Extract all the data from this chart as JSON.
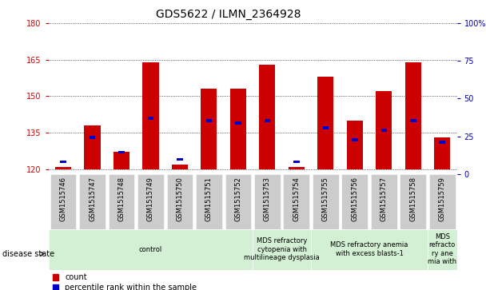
{
  "title": "GDS5622 / ILMN_2364928",
  "samples": [
    "GSM1515746",
    "GSM1515747",
    "GSM1515748",
    "GSM1515749",
    "GSM1515750",
    "GSM1515751",
    "GSM1515752",
    "GSM1515753",
    "GSM1515754",
    "GSM1515755",
    "GSM1515756",
    "GSM1515757",
    "GSM1515758",
    "GSM1515759"
  ],
  "count_values": [
    121,
    138,
    127,
    164,
    122,
    153,
    153,
    163,
    121,
    158,
    140,
    152,
    164,
    133
  ],
  "percentile_values": [
    123,
    133,
    127,
    141,
    124,
    140,
    139,
    140,
    123,
    137,
    132,
    136,
    140,
    131
  ],
  "ylim_left": [
    118,
    180
  ],
  "ylim_right": [
    0,
    100
  ],
  "yticks_left": [
    120,
    135,
    150,
    165,
    180
  ],
  "yticks_right": [
    0,
    25,
    50,
    75,
    100
  ],
  "bar_color": "#cc0000",
  "dot_color": "#0000cc",
  "bar_width": 0.55,
  "background_color": "#ffffff",
  "disease_groups": [
    {
      "label": "control",
      "start": 0,
      "end": 7,
      "color": "#d4f0d4"
    },
    {
      "label": "MDS refractory\ncytopenia with\nmultilineage dysplasia",
      "start": 7,
      "end": 9,
      "color": "#d4f0d4"
    },
    {
      "label": "MDS refractory anemia\nwith excess blasts-1",
      "start": 9,
      "end": 13,
      "color": "#d4f0d4"
    },
    {
      "label": "MDS\nrefracto\nry ane\nmia with",
      "start": 13,
      "end": 14,
      "color": "#d4f0d4"
    }
  ],
  "legend_count_label": "count",
  "legend_pct_label": "percentile rank within the sample",
  "disease_state_label": "disease state",
  "left_tick_color": "#cc0000",
  "right_tick_color": "#0000cc",
  "title_fontsize": 10,
  "tick_fontsize": 7,
  "sample_fontsize": 6,
  "disease_fontsize": 6
}
